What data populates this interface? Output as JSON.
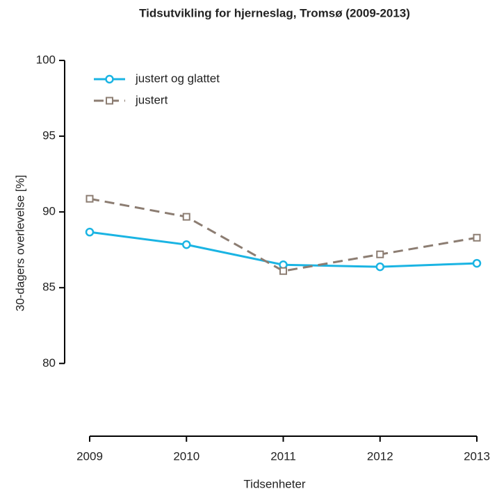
{
  "chart_data": {
    "type": "line",
    "title": "Tidsutvikling for hjerneslag, Tromsø (2009-2013)",
    "x_label": "Tidsenheter",
    "y_label": "30-dagers overlevelse [%]",
    "x": [
      2009,
      2010,
      2011,
      2012,
      2013
    ],
    "series": [
      {
        "name": "justert og glattet",
        "color": "#1ab4e3",
        "dashed": false,
        "marker": "circle",
        "values": [
          88.67,
          87.84,
          86.51,
          86.38,
          86.61
        ]
      },
      {
        "name": "justert",
        "color": "#8c7d72",
        "dashed": true,
        "marker": "square",
        "values": [
          90.87,
          89.68,
          86.1,
          87.2,
          88.3
        ]
      }
    ],
    "xlim": [
      2009,
      2013
    ],
    "xticks": [
      2009,
      2010,
      2011,
      2012,
      2013
    ],
    "ylim": [
      75.2,
      100
    ],
    "yticks": [
      80,
      85,
      90,
      95,
      100
    ],
    "legend": "top-left"
  }
}
